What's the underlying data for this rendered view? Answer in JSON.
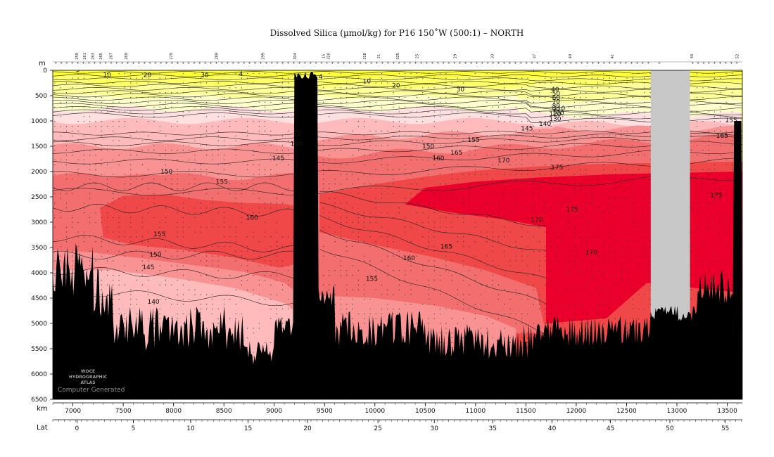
{
  "chart_data": {
    "type": "heatmap",
    "title": "Dissolved Silica (µmol/kg) for P16 150˚W (500:1) – NORTH",
    "xlabel": "km",
    "ylabel": "m",
    "secondary_xlabel": "Lat",
    "xlim": [
      6800,
      13650
    ],
    "ylim": [
      0,
      6500
    ],
    "y_inverted": true,
    "x_ticks": [
      7000,
      7500,
      8000,
      8500,
      9000,
      9500,
      10000,
      10500,
      11000,
      11500,
      12000,
      12500,
      13000,
      13500
    ],
    "y_ticks": [
      0,
      500,
      1000,
      1500,
      2000,
      2500,
      3000,
      3500,
      4000,
      4500,
      5000,
      5500,
      6000,
      6500
    ],
    "lat_ticks": [
      {
        "label": "0",
        "km": 7040
      },
      {
        "label": "5",
        "km": 7600
      },
      {
        "label": "10",
        "km": 8170
      },
      {
        "label": "15",
        "km": 8740
      },
      {
        "label": "20",
        "km": 9330
      },
      {
        "label": "25",
        "km": 10030
      },
      {
        "label": "30",
        "km": 10590
      },
      {
        "label": "35",
        "km": 11170
      },
      {
        "label": "40",
        "km": 11760
      },
      {
        "label": "45",
        "km": 12340
      },
      {
        "label": "50",
        "km": 12930
      },
      {
        "label": "55",
        "km": 13480
      }
    ],
    "contour_levels": [
      5,
      10,
      20,
      30,
      40,
      50,
      60,
      70,
      80,
      90,
      100,
      110,
      120,
      130,
      140,
      145,
      150,
      155,
      160,
      165,
      170,
      175
    ],
    "contour_labels": [
      {
        "text": "5",
        "x": 7030,
        "y": 30
      },
      {
        "text": "10",
        "x": 7300,
        "y": 130
      },
      {
        "text": "20",
        "x": 7700,
        "y": 130
      },
      {
        "text": "30",
        "x": 8270,
        "y": 130
      },
      {
        "text": "4",
        "x": 8650,
        "y": 110
      },
      {
        "text": "4",
        "x": 9440,
        "y": 170
      },
      {
        "text": "10",
        "x": 9880,
        "y": 260
      },
      {
        "text": "20",
        "x": 10170,
        "y": 340
      },
      {
        "text": "30",
        "x": 10810,
        "y": 420
      },
      {
        "text": "4",
        "x": 11550,
        "y": 20
      },
      {
        "text": "40",
        "x": 11750,
        "y": 420
      },
      {
        "text": "50",
        "x": 11760,
        "y": 500
      },
      {
        "text": "60",
        "x": 11760,
        "y": 580
      },
      {
        "text": "70",
        "x": 11760,
        "y": 660
      },
      {
        "text": "80",
        "x": 11760,
        "y": 740
      },
      {
        "text": "90",
        "x": 11760,
        "y": 810
      },
      {
        "text": "100",
        "x": 11760,
        "y": 880
      },
      {
        "text": "110",
        "x": 11770,
        "y": 790
      },
      {
        "text": "120",
        "x": 11730,
        "y": 900
      },
      {
        "text": "130",
        "x": 11730,
        "y": 1000
      },
      {
        "text": "140",
        "x": 11630,
        "y": 1100
      },
      {
        "text": "145",
        "x": 11450,
        "y": 1190
      },
      {
        "text": "150",
        "x": 10470,
        "y": 1540
      },
      {
        "text": "155",
        "x": 10920,
        "y": 1420
      },
      {
        "text": "160",
        "x": 10570,
        "y": 1780
      },
      {
        "text": "165",
        "x": 10750,
        "y": 1670
      },
      {
        "text": "170",
        "x": 11220,
        "y": 1820
      },
      {
        "text": "175",
        "x": 11750,
        "y": 1960
      },
      {
        "text": "155",
        "x": 13480,
        "y": 1030
      },
      {
        "text": "165",
        "x": 13390,
        "y": 1330
      },
      {
        "text": "175",
        "x": 13330,
        "y": 2510
      },
      {
        "text": "175",
        "x": 11900,
        "y": 2790
      },
      {
        "text": "170",
        "x": 11550,
        "y": 2990
      },
      {
        "text": "170",
        "x": 12090,
        "y": 3640
      },
      {
        "text": "165",
        "x": 10650,
        "y": 3520
      },
      {
        "text": "160",
        "x": 10280,
        "y": 3750
      },
      {
        "text": "155",
        "x": 9910,
        "y": 4160
      },
      {
        "text": "150",
        "x": 7870,
        "y": 2040
      },
      {
        "text": "155",
        "x": 8420,
        "y": 2240
      },
      {
        "text": "145",
        "x": 8980,
        "y": 1780
      },
      {
        "text": "160",
        "x": 8720,
        "y": 2950
      },
      {
        "text": "155",
        "x": 7800,
        "y": 3280
      },
      {
        "text": "150",
        "x": 7760,
        "y": 3680
      },
      {
        "text": "145",
        "x": 7690,
        "y": 3930
      },
      {
        "text": "140",
        "x": 7740,
        "y": 4610
      },
      {
        "text": "140",
        "x": 9160,
        "y": 1490
      },
      {
        "text": "12",
        "x": 9190,
        "y": 1300
      }
    ],
    "color_bands": [
      {
        "range": "< 5",
        "color": "#ffff33"
      },
      {
        "range": "5–20",
        "color": "#ffff66"
      },
      {
        "range": "20–40",
        "color": "#ffff99"
      },
      {
        "range": "40–80",
        "color": "#ffffcc"
      },
      {
        "range": "80–120",
        "color": "#ffe0e0"
      },
      {
        "range": "120–140",
        "color": "#ffbbbb"
      },
      {
        "range": "140–150",
        "color": "#f99393"
      },
      {
        "range": "150–160",
        "color": "#f36f6f"
      },
      {
        "range": "160–170",
        "color": "#f04848"
      },
      {
        "range": "> 170",
        "color": "#ea002b"
      }
    ],
    "missing_data_color": "#c8c8c8",
    "bathymetry_color": "#000000",
    "missing_data_gap_km": [
      12740,
      13130
    ],
    "station_labels": [
      {
        "text": "259",
        "km": 7050
      },
      {
        "text": "261",
        "km": 7130
      },
      {
        "text": "263",
        "km": 7210
      },
      {
        "text": "265",
        "km": 7290
      },
      {
        "text": "267",
        "km": 7390
      },
      {
        "text": "269",
        "km": 7540
      },
      {
        "text": "279",
        "km": 7990
      },
      {
        "text": "289",
        "km": 8440
      },
      {
        "text": "299",
        "km": 8900
      },
      {
        "text": "304",
        "km": 9220
      },
      {
        "text": "310",
        "km": 9550
      },
      {
        "text": "318",
        "km": 9910
      },
      {
        "text": "325",
        "km": 10240
      },
      {
        "text": "15",
        "km": 9500
      },
      {
        "text": "21",
        "km": 10050
      },
      {
        "text": "25",
        "km": 10430
      },
      {
        "text": "29",
        "km": 10810
      },
      {
        "text": "33",
        "km": 11180
      },
      {
        "text": "37",
        "km": 11600
      },
      {
        "text": "40",
        "km": 11950
      },
      {
        "text": "41",
        "km": 12370
      },
      {
        "text": "46",
        "km": 13160
      },
      {
        "text": "52",
        "km": 13610
      }
    ],
    "watermark": [
      "WOCE",
      "HYDROGRAPHIC",
      "ATLAS"
    ],
    "watermark_caption": "Computer Generated"
  }
}
